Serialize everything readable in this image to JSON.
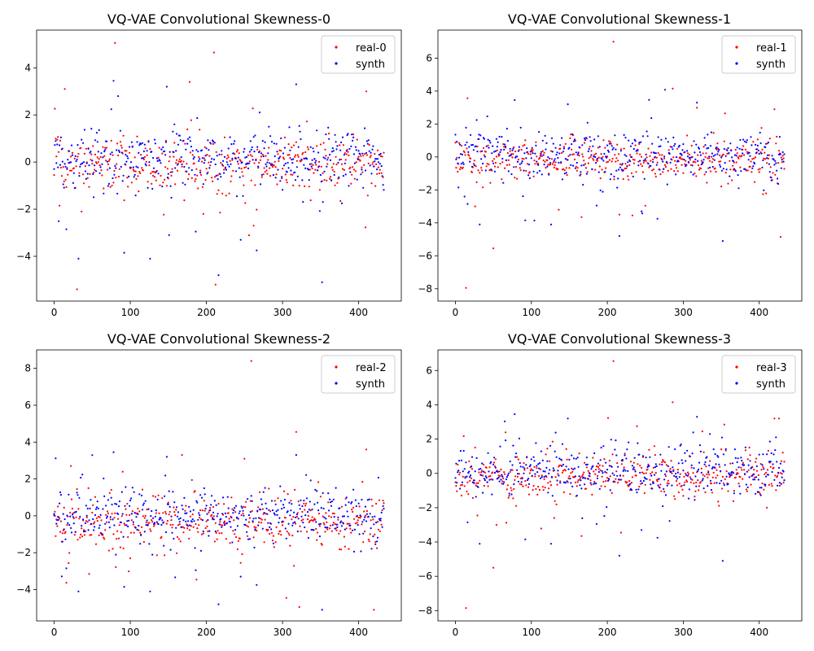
{
  "chart_data": [
    {
      "type": "scatter",
      "title": "VQ-VAE Convolutional Skewness-0",
      "xlabel": "",
      "ylabel": "",
      "xlim": [
        -23,
        456
      ],
      "ylim": [
        -5.9,
        5.6
      ],
      "xticks": [
        0,
        100,
        200,
        300,
        400
      ],
      "yticks": [
        -4,
        -2,
        0,
        2,
        4
      ],
      "grid": false,
      "legend_position": "top-right",
      "series": [
        {
          "name": "real-0",
          "color": "#ff0000",
          "n_points": 434,
          "spread": 0.55,
          "center": -0.12,
          "outliers": [
            [
              30,
              -5.4
            ],
            [
              80,
              5.05
            ],
            [
              212,
              -5.2
            ],
            [
              210,
              4.65
            ],
            [
              178,
              3.4
            ],
            [
              14,
              3.1
            ],
            [
              410,
              3.0
            ],
            [
              36,
              -2.1
            ],
            [
              196,
              -2.2
            ],
            [
              262,
              -2.7
            ]
          ]
        },
        {
          "name": "synth",
          "color": "#0000ff",
          "n_points": 434,
          "spread": 0.62,
          "center": 0.1,
          "outliers": [
            [
              78,
              3.45
            ],
            [
              318,
              3.3
            ],
            [
              352,
              -5.1
            ],
            [
              216,
              -4.8
            ],
            [
              32,
              -4.1
            ],
            [
              126,
              -4.1
            ],
            [
              92,
              -3.85
            ],
            [
              16,
              -2.85
            ],
            [
              186,
              -2.95
            ],
            [
              148,
              3.2
            ],
            [
              266,
              -3.75
            ],
            [
              245,
              -3.3
            ]
          ]
        }
      ]
    },
    {
      "type": "scatter",
      "title": "VQ-VAE Convolutional Skewness-1",
      "xlabel": "",
      "ylabel": "",
      "xlim": [
        -23,
        456
      ],
      "ylim": [
        -8.75,
        7.7
      ],
      "xticks": [
        0,
        100,
        200,
        300,
        400
      ],
      "yticks": [
        -8,
        -6,
        -4,
        -2,
        0,
        2,
        4,
        6
      ],
      "grid": false,
      "legend_position": "top-right",
      "series": [
        {
          "name": "real-1",
          "color": "#ff0000",
          "n_points": 434,
          "spread": 0.6,
          "center": -0.2,
          "outliers": [
            [
              14,
              -7.95
            ],
            [
              208,
              7.0
            ],
            [
              50,
              -5.55
            ],
            [
              286,
              4.15
            ],
            [
              428,
              -4.85
            ],
            [
              136,
              -3.2
            ],
            [
              166,
              -3.65
            ],
            [
              420,
              2.9
            ],
            [
              26,
              -3.0
            ],
            [
              216,
              -3.5
            ]
          ]
        },
        {
          "name": "synth",
          "color": "#0000ff",
          "n_points": 434,
          "spread": 0.7,
          "center": 0.1,
          "outliers": [
            [
              78,
              3.45
            ],
            [
              318,
              3.3
            ],
            [
              352,
              -5.1
            ],
            [
              216,
              -4.8
            ],
            [
              32,
              -4.1
            ],
            [
              126,
              -4.1
            ],
            [
              92,
              -3.85
            ],
            [
              16,
              -2.85
            ],
            [
              186,
              -2.95
            ],
            [
              148,
              3.2
            ],
            [
              266,
              -3.75
            ],
            [
              245,
              -3.3
            ]
          ]
        }
      ]
    },
    {
      "type": "scatter",
      "title": "VQ-VAE Convolutional Skewness-2",
      "xlabel": "",
      "ylabel": "",
      "xlim": [
        -23,
        456
      ],
      "ylim": [
        -5.7,
        9.0
      ],
      "xticks": [
        0,
        100,
        200,
        300,
        400
      ],
      "yticks": [
        -4,
        -2,
        0,
        2,
        4,
        6,
        8
      ],
      "grid": false,
      "legend_position": "top-right",
      "series": [
        {
          "name": "real-2",
          "color": "#ff0000",
          "n_points": 434,
          "spread": 0.65,
          "center": -0.35,
          "outliers": [
            [
              259,
              8.4
            ],
            [
              318,
              4.55
            ],
            [
              410,
              3.6
            ],
            [
              420,
              -5.1
            ],
            [
              322,
              -4.95
            ],
            [
              305,
              -4.45
            ],
            [
              46,
              -3.15
            ],
            [
              250,
              3.1
            ],
            [
              168,
              3.3
            ],
            [
              22,
              2.7
            ],
            [
              100,
              -2.3
            ]
          ]
        },
        {
          "name": "synth",
          "color": "#0000ff",
          "n_points": 434,
          "spread": 0.7,
          "center": 0.1,
          "outliers": [
            [
              78,
              3.45
            ],
            [
              318,
              3.3
            ],
            [
              352,
              -5.1
            ],
            [
              216,
              -4.8
            ],
            [
              32,
              -4.1
            ],
            [
              126,
              -4.1
            ],
            [
              92,
              -3.85
            ],
            [
              16,
              -2.85
            ],
            [
              186,
              -2.95
            ],
            [
              148,
              3.2
            ],
            [
              266,
              -3.75
            ],
            [
              245,
              -3.3
            ]
          ]
        }
      ]
    },
    {
      "type": "scatter",
      "title": "VQ-VAE Convolutional Skewness-3",
      "xlabel": "",
      "ylabel": "",
      "xlim": [
        -23,
        456
      ],
      "ylim": [
        -8.6,
        7.2
      ],
      "xticks": [
        0,
        100,
        200,
        300,
        400
      ],
      "yticks": [
        -8,
        -6,
        -4,
        -2,
        0,
        2,
        4,
        6
      ],
      "grid": false,
      "legend_position": "top-right",
      "series": [
        {
          "name": "real-3",
          "color": "#ff0000",
          "n_points": 434,
          "spread": 0.6,
          "center": -0.15,
          "outliers": [
            [
              14,
              -7.85
            ],
            [
              208,
              6.55
            ],
            [
              50,
              -5.5
            ],
            [
              286,
              4.15
            ],
            [
              166,
              -3.65
            ],
            [
              420,
              3.2
            ],
            [
              426,
              3.2
            ],
            [
              54,
              -3.0
            ],
            [
              218,
              -3.45
            ],
            [
              130,
              -2.6
            ]
          ]
        },
        {
          "name": "synth",
          "color": "#0000ff",
          "n_points": 434,
          "spread": 0.7,
          "center": 0.1,
          "outliers": [
            [
              78,
              3.45
            ],
            [
              318,
              3.3
            ],
            [
              352,
              -5.1
            ],
            [
              216,
              -4.8
            ],
            [
              32,
              -4.1
            ],
            [
              126,
              -4.1
            ],
            [
              92,
              -3.85
            ],
            [
              16,
              -2.85
            ],
            [
              186,
              -2.95
            ],
            [
              148,
              3.2
            ],
            [
              266,
              -3.75
            ],
            [
              245,
              -3.3
            ]
          ]
        }
      ]
    }
  ]
}
